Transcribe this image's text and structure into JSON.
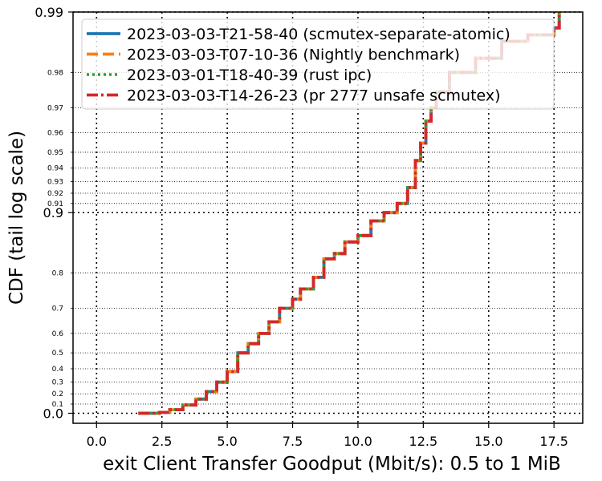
{
  "chart_data": {
    "type": "line",
    "title": "",
    "xlabel": "exit Client Transfer Goodput (Mbit/s): 0.5 to 1 MiB",
    "ylabel": "CDF (tail log scale)",
    "xlim": [
      -0.9,
      18.6
    ],
    "x_ticks": [
      0.0,
      2.5,
      5.0,
      7.5,
      10.0,
      12.5,
      15.0,
      17.5
    ],
    "x_tick_labels": [
      "0.0",
      "2.5",
      "5.0",
      "7.5",
      "10.0",
      "12.5",
      "15.0",
      "17.5"
    ],
    "y_scale": "tail-log",
    "y_major_ticks": [
      0.0,
      0.9,
      0.99
    ],
    "y_major_tick_labels": [
      "0.0",
      "0.9",
      "0.99"
    ],
    "y_minor_ticks": [
      0.1,
      0.2,
      0.3,
      0.4,
      0.5,
      0.6,
      0.7,
      0.8,
      0.91,
      0.92,
      0.93,
      0.94,
      0.95,
      0.96,
      0.97,
      0.98
    ],
    "y_minor_tick_labels": [
      "0.1",
      "0.2",
      "0.3",
      "0.4",
      "0.5",
      "0.6",
      "0.7",
      "0.8",
      "0.91",
      "0.92",
      "0.93",
      "0.94",
      "0.95",
      "0.96",
      "0.97",
      "0.98"
    ],
    "grid": true,
    "legend_position": "top-left",
    "series": [
      {
        "name": "2023-03-03-T21-58-40 (scmutex-separate-atomic)",
        "color": "#1f77b4",
        "style": "solid",
        "x": [
          1.6,
          2.4,
          2.8,
          3.3,
          3.8,
          4.2,
          4.6,
          5.0,
          5.4,
          5.8,
          6.2,
          6.6,
          7.0,
          7.5,
          7.8,
          8.3,
          8.7,
          9.1,
          9.5,
          10.0,
          10.5,
          11.0,
          11.5,
          11.9,
          12.2,
          12.4,
          12.6,
          12.8,
          13.0,
          13.5,
          14.5,
          15.5,
          16.5,
          17.5,
          17.7
        ],
        "y": [
          0.0,
          0.01,
          0.04,
          0.09,
          0.15,
          0.22,
          0.3,
          0.38,
          0.5,
          0.55,
          0.6,
          0.65,
          0.7,
          0.73,
          0.76,
          0.79,
          0.83,
          0.84,
          0.86,
          0.87,
          0.89,
          0.9,
          0.91,
          0.925,
          0.945,
          0.955,
          0.965,
          0.97,
          0.975,
          0.98,
          0.983,
          0.986,
          0.987,
          0.988,
          0.99
        ]
      },
      {
        "name": "2023-03-03-T07-10-36 (Nightly benchmark)",
        "color": "#ff7f0e",
        "style": "dashed",
        "x": [
          1.6,
          2.4,
          2.8,
          3.3,
          3.8,
          4.2,
          4.6,
          5.0,
          5.4,
          5.8,
          6.2,
          6.6,
          7.0,
          7.5,
          7.8,
          8.3,
          8.7,
          9.1,
          9.5,
          10.0,
          10.5,
          11.0,
          11.5,
          11.9,
          12.2,
          12.4,
          12.6,
          12.8,
          13.0,
          13.5,
          14.5,
          15.5,
          16.5,
          17.5,
          17.7
        ],
        "y": [
          0.0,
          0.01,
          0.04,
          0.09,
          0.15,
          0.22,
          0.3,
          0.38,
          0.5,
          0.55,
          0.6,
          0.65,
          0.7,
          0.73,
          0.76,
          0.79,
          0.83,
          0.84,
          0.86,
          0.87,
          0.89,
          0.9,
          0.91,
          0.925,
          0.945,
          0.955,
          0.965,
          0.97,
          0.975,
          0.98,
          0.983,
          0.986,
          0.987,
          0.988,
          0.99
        ]
      },
      {
        "name": "2023-03-01-T18-40-39 (rust ipc)",
        "color": "#2ca02c",
        "style": "dotted",
        "x": [
          1.6,
          2.4,
          2.8,
          3.3,
          3.8,
          4.2,
          4.6,
          5.0,
          5.4,
          5.8,
          6.2,
          6.6,
          7.0,
          7.5,
          7.8,
          8.3,
          8.7,
          9.1,
          9.5,
          10.0,
          10.5,
          11.0,
          11.5,
          11.9,
          12.2,
          12.4,
          12.6,
          12.8,
          13.0,
          13.5,
          14.5,
          15.5,
          16.5,
          17.5,
          17.7
        ],
        "y": [
          0.0,
          0.01,
          0.04,
          0.09,
          0.15,
          0.22,
          0.3,
          0.38,
          0.5,
          0.55,
          0.6,
          0.65,
          0.7,
          0.73,
          0.76,
          0.79,
          0.83,
          0.84,
          0.86,
          0.87,
          0.89,
          0.9,
          0.91,
          0.925,
          0.945,
          0.955,
          0.965,
          0.97,
          0.975,
          0.98,
          0.983,
          0.986,
          0.987,
          0.988,
          0.99
        ]
      },
      {
        "name": "2023-03-03-T14-26-23 (pr 2777 unsafe scmutex)",
        "color": "#d62728",
        "style": "dashdot",
        "x": [
          1.6,
          2.4,
          2.8,
          3.3,
          3.8,
          4.2,
          4.6,
          5.0,
          5.4,
          5.8,
          6.2,
          6.6,
          7.0,
          7.5,
          7.8,
          8.3,
          8.7,
          9.1,
          9.5,
          10.0,
          10.5,
          11.0,
          11.5,
          11.9,
          12.2,
          12.4,
          12.6,
          12.8,
          13.0,
          13.5,
          14.5,
          15.5,
          16.5,
          17.5,
          17.7
        ],
        "y": [
          0.0,
          0.01,
          0.04,
          0.09,
          0.15,
          0.22,
          0.3,
          0.38,
          0.5,
          0.55,
          0.6,
          0.65,
          0.7,
          0.73,
          0.76,
          0.79,
          0.83,
          0.84,
          0.86,
          0.87,
          0.89,
          0.9,
          0.91,
          0.925,
          0.945,
          0.955,
          0.965,
          0.97,
          0.975,
          0.98,
          0.983,
          0.986,
          0.987,
          0.988,
          0.99
        ]
      }
    ]
  }
}
